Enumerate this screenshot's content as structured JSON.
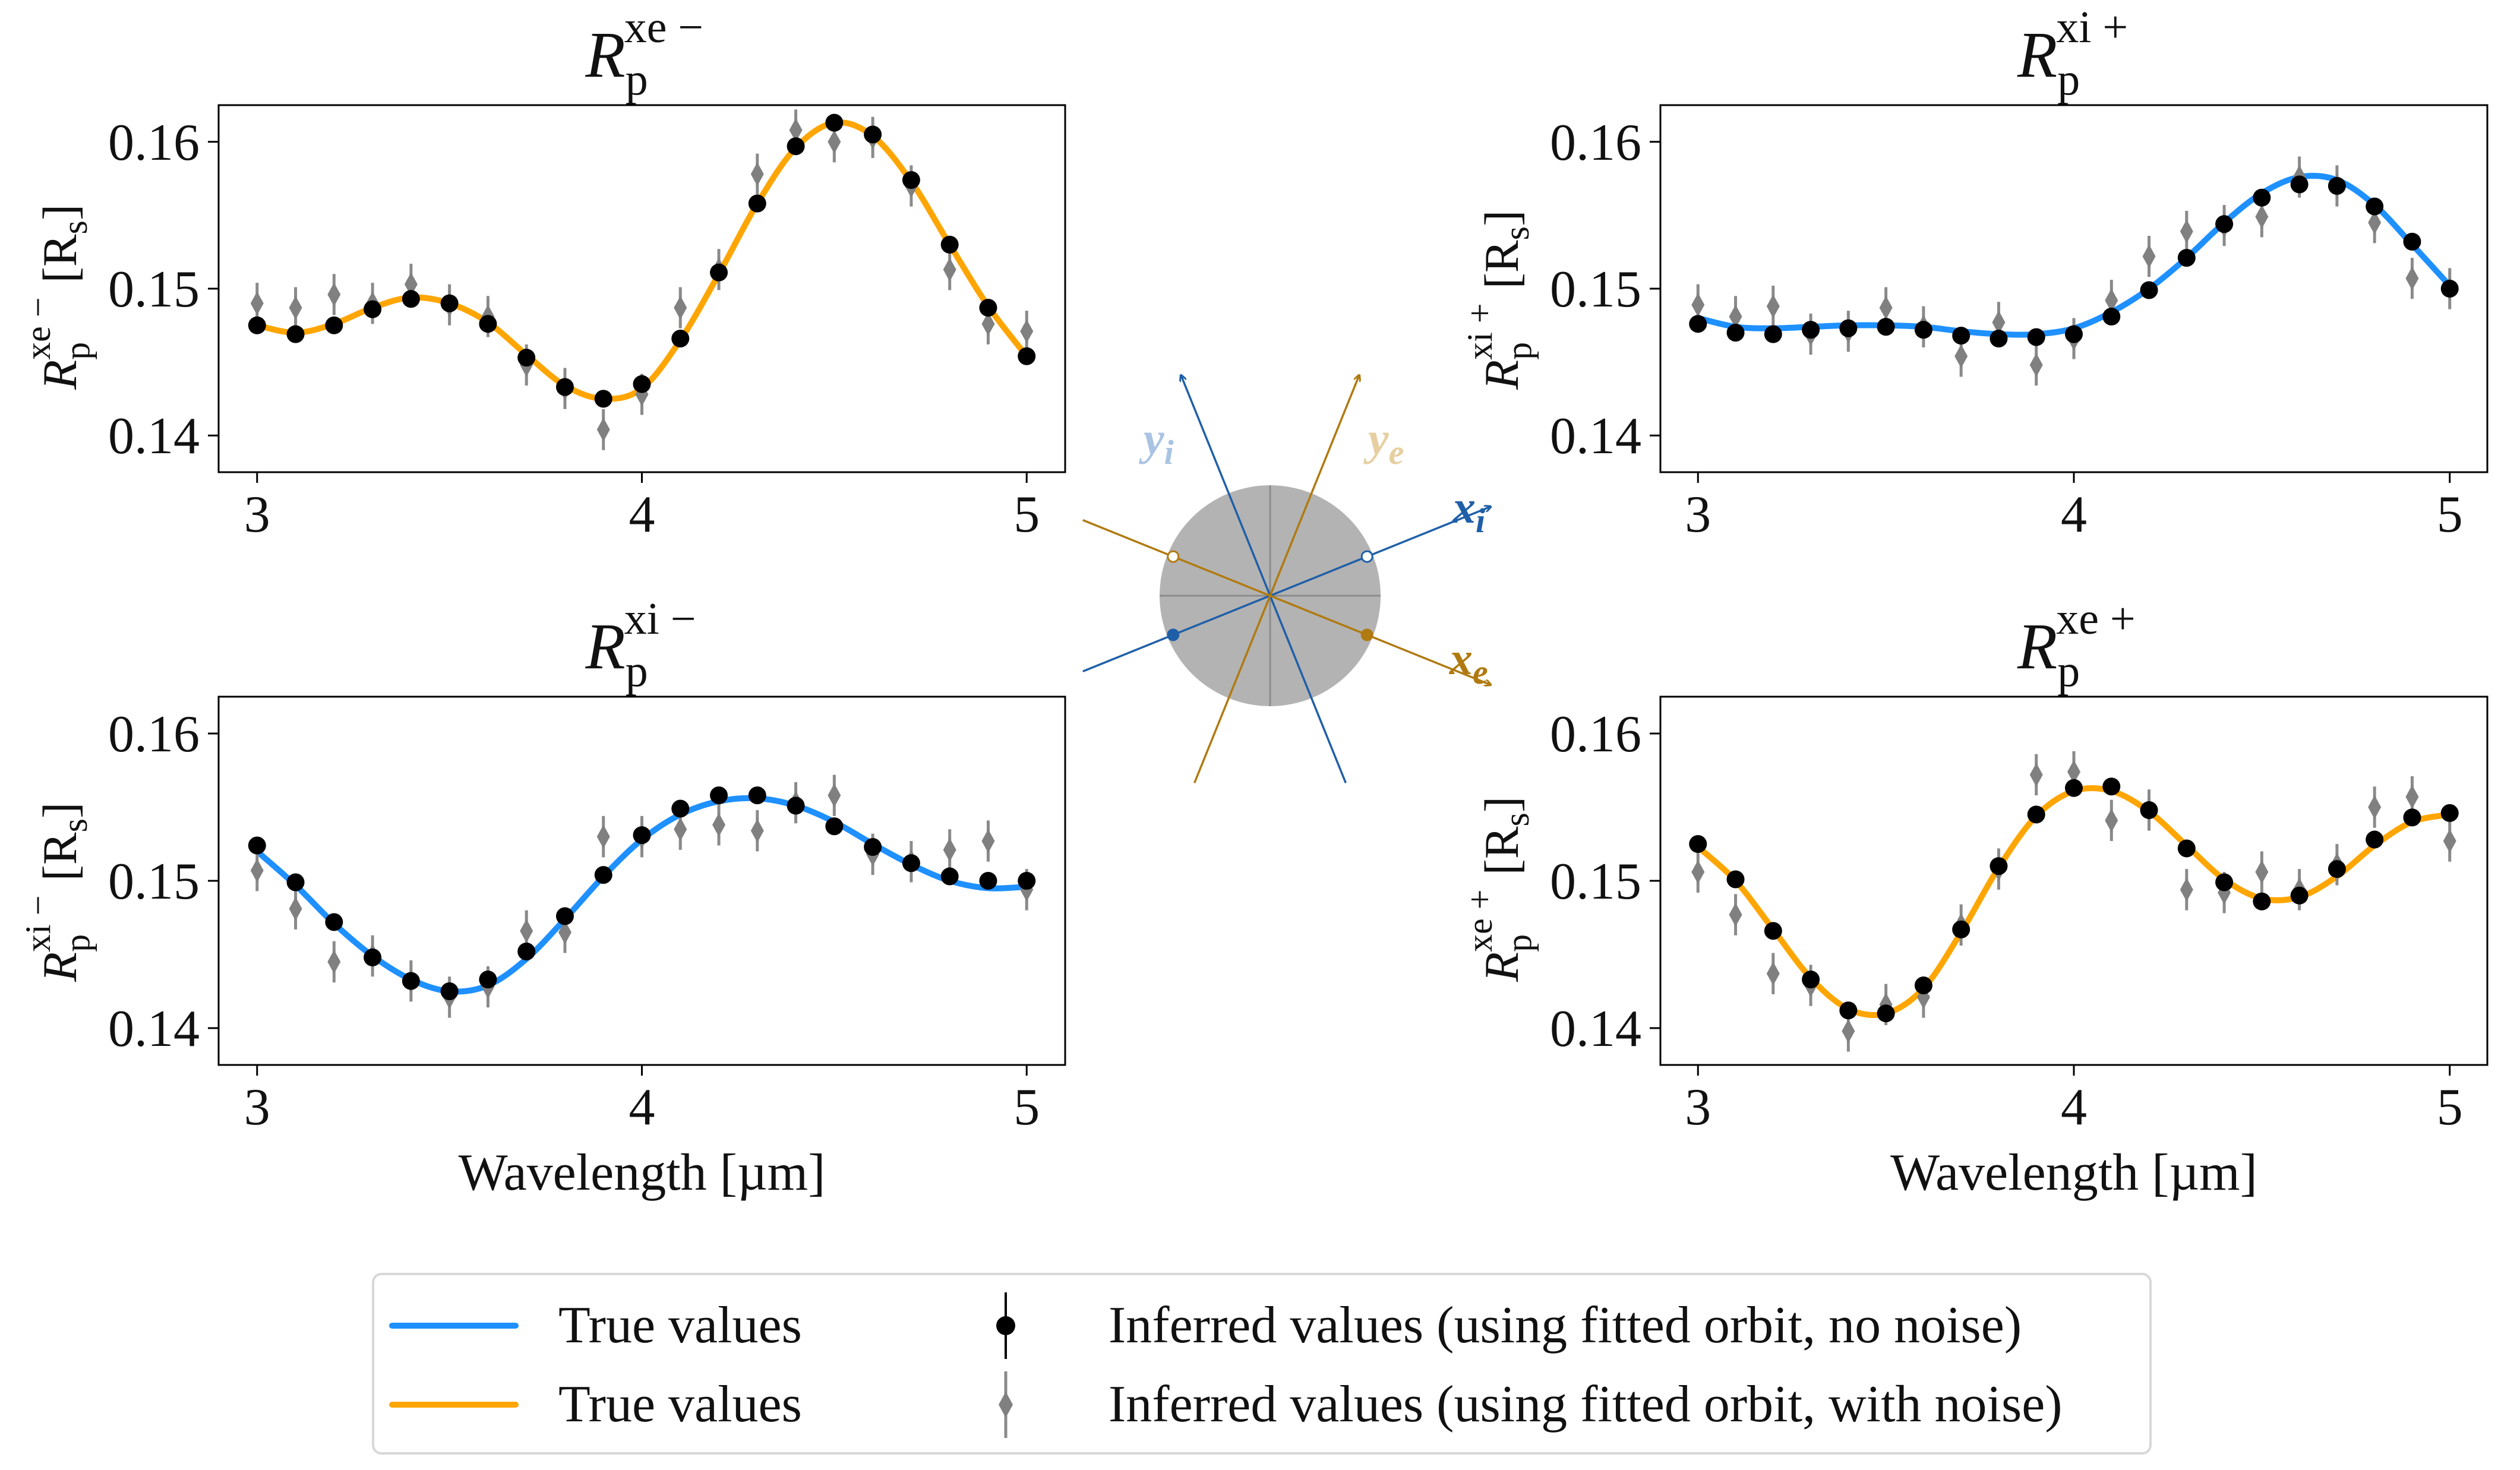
{
  "chart_data": [
    {
      "type": "line",
      "id": "xe_minus",
      "title": "R_p^{xe−}",
      "title_main": "R",
      "title_sub": "p",
      "title_sup": "xe −",
      "ylabel_main": "R",
      "ylabel_sub": "p",
      "ylabel_sup": "xe −",
      "ylabel_units": "[R",
      "ylabel_units_sub": "s",
      "ylabel_units_close": "]",
      "xlabel": "",
      "line_color": "#FFA500",
      "xlim": [
        2.9,
        5.1
      ],
      "ylim": [
        0.1375,
        0.1625
      ],
      "xticks": [
        "3",
        "4",
        "5"
      ],
      "yticks": [
        "0.14",
        "0.15",
        "0.16"
      ],
      "true_x": [
        3.0,
        3.1,
        3.2,
        3.3,
        3.4,
        3.5,
        3.6,
        3.7,
        3.8,
        3.9,
        4.0,
        4.1,
        4.2,
        4.3,
        4.4,
        4.5,
        4.6,
        4.7,
        4.8,
        4.9,
        5.0
      ],
      "true_y": [
        0.1475,
        0.147,
        0.1476,
        0.1487,
        0.1494,
        0.149,
        0.1477,
        0.1455,
        0.1434,
        0.1425,
        0.1432,
        0.1465,
        0.151,
        0.1558,
        0.1596,
        0.1613,
        0.1604,
        0.1573,
        0.153,
        0.1488,
        0.1454
      ],
      "nonoise_x": [
        3.0,
        3.1,
        3.2,
        3.3,
        3.4,
        3.5,
        3.6,
        3.7,
        3.8,
        3.9,
        4.0,
        4.1,
        4.2,
        4.3,
        4.4,
        4.5,
        4.6,
        4.7,
        4.8,
        4.9,
        5.0
      ],
      "nonoise_y": [
        0.1475,
        0.1469,
        0.1475,
        0.1486,
        0.1493,
        0.149,
        0.1476,
        0.1453,
        0.1433,
        0.1425,
        0.1435,
        0.1466,
        0.1511,
        0.1558,
        0.1597,
        0.1613,
        0.1605,
        0.1574,
        0.153,
        0.1487,
        0.1454
      ],
      "noise_x": [
        3.0,
        3.1,
        3.2,
        3.3,
        3.4,
        3.5,
        3.6,
        3.7,
        3.8,
        3.9,
        4.0,
        4.1,
        4.2,
        4.3,
        4.4,
        4.5,
        4.6,
        4.7,
        4.8,
        4.9,
        5.0
      ],
      "noise_y": [
        0.149,
        0.1487,
        0.1496,
        0.149,
        0.1503,
        0.1489,
        0.1481,
        0.1448,
        0.1432,
        0.1404,
        0.1428,
        0.1487,
        0.1513,
        0.1578,
        0.1608,
        0.16,
        0.1603,
        0.157,
        0.1513,
        0.1476,
        0.1471
      ],
      "noise_err": [
        0.0014,
        0.0014,
        0.0014,
        0.0014,
        0.0014,
        0.0014,
        0.0014,
        0.0014,
        0.0014,
        0.0014,
        0.0014,
        0.0014,
        0.0014,
        0.0014,
        0.0014,
        0.0014,
        0.0014,
        0.0014,
        0.0014,
        0.0014,
        0.0014
      ]
    },
    {
      "type": "line",
      "id": "xi_plus",
      "title": "R_p^{xi+}",
      "title_main": "R",
      "title_sub": "p",
      "title_sup": "xi +",
      "ylabel_main": "R",
      "ylabel_sub": "p",
      "ylabel_sup": "xi +",
      "ylabel_units": "[R",
      "ylabel_units_sub": "s",
      "ylabel_units_close": "]",
      "xlabel": "",
      "line_color": "#1E90FF",
      "xlim": [
        2.9,
        5.1
      ],
      "ylim": [
        0.1375,
        0.1625
      ],
      "xticks": [
        "3",
        "4",
        "5"
      ],
      "yticks": [
        "0.14",
        "0.15",
        "0.16"
      ],
      "true_x": [
        3.0,
        3.1,
        3.2,
        3.3,
        3.4,
        3.5,
        3.6,
        3.7,
        3.8,
        3.9,
        4.0,
        4.1,
        4.2,
        4.3,
        4.4,
        4.5,
        4.6,
        4.7,
        4.8,
        4.9,
        5.0
      ],
      "true_y": [
        0.148,
        0.1474,
        0.1473,
        0.1474,
        0.1475,
        0.1475,
        0.1474,
        0.1471,
        0.1469,
        0.1469,
        0.1473,
        0.1484,
        0.15,
        0.1521,
        0.1545,
        0.1565,
        0.1576,
        0.1574,
        0.1557,
        0.153,
        0.1502
      ],
      "nonoise_x": [
        3.0,
        3.1,
        3.2,
        3.3,
        3.4,
        3.5,
        3.6,
        3.7,
        3.8,
        3.9,
        4.0,
        4.1,
        4.2,
        4.3,
        4.4,
        4.5,
        4.6,
        4.7,
        4.8,
        4.9,
        5.0
      ],
      "nonoise_y": [
        0.1476,
        0.147,
        0.1469,
        0.1472,
        0.1473,
        0.1474,
        0.1472,
        0.1468,
        0.1466,
        0.1467,
        0.1469,
        0.1481,
        0.1499,
        0.1521,
        0.1544,
        0.1562,
        0.1571,
        0.157,
        0.1556,
        0.1532,
        0.15
      ],
      "noise_x": [
        3.0,
        3.1,
        3.2,
        3.3,
        3.4,
        3.5,
        3.6,
        3.7,
        3.8,
        3.9,
        4.0,
        4.1,
        4.2,
        4.3,
        4.4,
        4.5,
        4.6,
        4.7,
        4.8,
        4.9,
        5.0
      ],
      "noise_y": [
        0.1489,
        0.1481,
        0.1488,
        0.1469,
        0.1471,
        0.1487,
        0.1474,
        0.1454,
        0.1477,
        0.1448,
        0.1466,
        0.1492,
        0.1522,
        0.1539,
        0.1543,
        0.1549,
        0.1576,
        0.157,
        0.1545,
        0.1507,
        0.15
      ],
      "noise_err": [
        0.0014,
        0.0014,
        0.0014,
        0.0014,
        0.0014,
        0.0014,
        0.0014,
        0.0014,
        0.0014,
        0.0014,
        0.0014,
        0.0014,
        0.0014,
        0.0014,
        0.0014,
        0.0014,
        0.0014,
        0.0014,
        0.0014,
        0.0014,
        0.0014
      ]
    },
    {
      "type": "line",
      "id": "xi_minus",
      "title": "R_p^{xi−}",
      "title_main": "R",
      "title_sub": "p",
      "title_sup": "xi −",
      "ylabel_main": "R",
      "ylabel_sub": "p",
      "ylabel_sup": "xi −",
      "ylabel_units": "[R",
      "ylabel_units_sub": "s",
      "ylabel_units_close": "]",
      "xlabel": "Wavelength [µm]",
      "line_color": "#1E90FF",
      "xlim": [
        2.9,
        5.1
      ],
      "ylim": [
        0.1375,
        0.1625
      ],
      "xticks": [
        "3",
        "4",
        "5"
      ],
      "yticks": [
        "0.14",
        "0.15",
        "0.16"
      ],
      "true_x": [
        3.0,
        3.1,
        3.2,
        3.3,
        3.4,
        3.5,
        3.6,
        3.7,
        3.8,
        3.9,
        4.0,
        4.1,
        4.2,
        4.3,
        4.4,
        4.5,
        4.6,
        4.7,
        4.8,
        4.9,
        5.0
      ],
      "true_y": [
        0.152,
        0.1497,
        0.1471,
        0.1449,
        0.1433,
        0.1425,
        0.1429,
        0.1447,
        0.1474,
        0.1503,
        0.1528,
        0.1545,
        0.1554,
        0.1556,
        0.1551,
        0.154,
        0.1525,
        0.1511,
        0.15,
        0.1495,
        0.1496
      ],
      "nonoise_x": [
        3.0,
        3.1,
        3.2,
        3.3,
        3.4,
        3.5,
        3.6,
        3.7,
        3.8,
        3.9,
        4.0,
        4.1,
        4.2,
        4.3,
        4.4,
        4.5,
        4.6,
        4.7,
        4.8,
        4.9,
        5.0
      ],
      "nonoise_y": [
        0.1524,
        0.1499,
        0.1472,
        0.1448,
        0.1432,
        0.1425,
        0.1433,
        0.1452,
        0.1476,
        0.1504,
        0.1531,
        0.1549,
        0.1558,
        0.1558,
        0.1551,
        0.1537,
        0.1523,
        0.1512,
        0.1503,
        0.15,
        0.15
      ],
      "noise_x": [
        3.0,
        3.1,
        3.2,
        3.3,
        3.4,
        3.5,
        3.6,
        3.7,
        3.8,
        3.9,
        4.0,
        4.1,
        4.2,
        4.3,
        4.4,
        4.5,
        4.6,
        4.7,
        4.8,
        4.9,
        5.0
      ],
      "noise_y": [
        0.1507,
        0.1481,
        0.1445,
        0.1449,
        0.1432,
        0.1421,
        0.1428,
        0.1466,
        0.1465,
        0.153,
        0.153,
        0.1535,
        0.1538,
        0.1534,
        0.1553,
        0.1558,
        0.1518,
        0.1513,
        0.1521,
        0.1527,
        0.1494
      ],
      "noise_err": [
        0.0014,
        0.0014,
        0.0014,
        0.0014,
        0.0014,
        0.0014,
        0.0014,
        0.0014,
        0.0014,
        0.0014,
        0.0014,
        0.0014,
        0.0014,
        0.0014,
        0.0014,
        0.0014,
        0.0014,
        0.0014,
        0.0014,
        0.0014,
        0.0014
      ]
    },
    {
      "type": "line",
      "id": "xe_plus",
      "title": "R_p^{xe+}",
      "title_main": "R",
      "title_sub": "p",
      "title_sup": "xe +",
      "ylabel_main": "R",
      "ylabel_sub": "p",
      "ylabel_sup": "xe +",
      "ylabel_units": "[R",
      "ylabel_units_sub": "s",
      "ylabel_units_close": "]",
      "xlabel": "Wavelength [µm]",
      "line_color": "#FFA500",
      "xlim": [
        2.9,
        5.1
      ],
      "ylim": [
        0.1375,
        0.1625
      ],
      "xticks": [
        "3",
        "4",
        "5"
      ],
      "yticks": [
        "0.14",
        "0.15",
        "0.16"
      ],
      "true_x": [
        3.0,
        3.1,
        3.2,
        3.3,
        3.4,
        3.5,
        3.6,
        3.7,
        3.8,
        3.9,
        4.0,
        4.1,
        4.2,
        4.3,
        4.4,
        4.5,
        4.6,
        4.7,
        4.8,
        4.9,
        5.0
      ],
      "true_y": [
        0.1523,
        0.15,
        0.1467,
        0.1434,
        0.1413,
        0.141,
        0.1427,
        0.1465,
        0.1509,
        0.1544,
        0.1561,
        0.1561,
        0.1547,
        0.1524,
        0.1501,
        0.1488,
        0.1489,
        0.1503,
        0.1524,
        0.154,
        0.1545
      ],
      "nonoise_x": [
        3.0,
        3.1,
        3.2,
        3.3,
        3.4,
        3.5,
        3.6,
        3.7,
        3.8,
        3.9,
        4.0,
        4.1,
        4.2,
        4.3,
        4.4,
        4.5,
        4.6,
        4.7,
        4.8,
        4.9,
        5.0
      ],
      "nonoise_y": [
        0.1525,
        0.1501,
        0.1466,
        0.1433,
        0.1412,
        0.141,
        0.1429,
        0.1467,
        0.151,
        0.1545,
        0.1563,
        0.1564,
        0.1548,
        0.1522,
        0.1499,
        0.1486,
        0.149,
        0.1508,
        0.1528,
        0.1543,
        0.1546
      ],
      "noise_x": [
        3.0,
        3.1,
        3.2,
        3.3,
        3.4,
        3.5,
        3.6,
        3.7,
        3.8,
        3.9,
        4.0,
        4.1,
        4.2,
        4.3,
        4.4,
        4.5,
        4.6,
        4.7,
        4.8,
        4.9,
        5.0
      ],
      "noise_y": [
        0.1506,
        0.1477,
        0.1437,
        0.1429,
        0.1398,
        0.1416,
        0.1421,
        0.147,
        0.1508,
        0.1572,
        0.1574,
        0.1541,
        0.1548,
        0.1494,
        0.1492,
        0.1506,
        0.1494,
        0.1511,
        0.155,
        0.1557,
        0.1527
      ],
      "noise_err": [
        0.0014,
        0.0014,
        0.0014,
        0.0014,
        0.0014,
        0.0014,
        0.0014,
        0.0014,
        0.0014,
        0.0014,
        0.0014,
        0.0014,
        0.0014,
        0.0014,
        0.0014,
        0.0014,
        0.0014,
        0.0014,
        0.0014,
        0.0014,
        0.0014
      ]
    }
  ],
  "diagram": {
    "label_yi": "y",
    "label_yi_sub": "i",
    "label_xi": "x",
    "label_xi_sub": "i",
    "label_ye": "y",
    "label_ye_sub": "e",
    "label_xe": "x",
    "label_xe_sub": "e",
    "color_i": "#1F5FA8",
    "color_i_light": "#A9C3E3",
    "color_e": "#B07A10",
    "color_e_light": "#E6CFA0",
    "disk_color": "#B3B3B3"
  },
  "legend": {
    "entries": [
      {
        "label": "True values",
        "color": "#1E90FF"
      },
      {
        "label": "True values",
        "color": "#FFA500"
      },
      {
        "label": "Inferred values (using fitted orbit, no noise)",
        "color": "#000000"
      },
      {
        "label": "Inferred values (using fitted orbit, with noise)",
        "color": "#808080"
      }
    ]
  }
}
